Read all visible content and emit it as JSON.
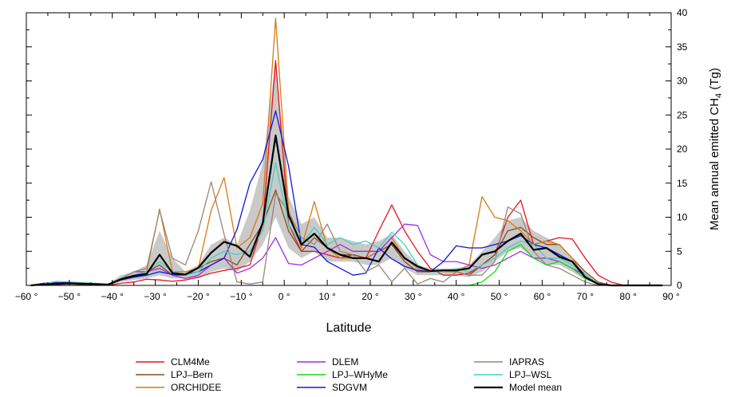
{
  "chart_data": {
    "type": "line",
    "xlabel": "Latitude",
    "ylabel_main": "Mean annual emitted CH",
    "ylabel_sub": "4",
    "ylabel_unit": " (Tg)",
    "xlim": [
      -60,
      90
    ],
    "ylim": [
      0,
      40
    ],
    "x_ticks": [
      -60,
      -50,
      -40,
      -30,
      -20,
      -10,
      0,
      10,
      20,
      30,
      40,
      50,
      60,
      70,
      80,
      90
    ],
    "x_tick_labels": [
      "−60 °",
      "−50 °",
      "−40 °",
      "−30 °",
      "−20 °",
      "−10 °",
      "0 °",
      "10 °",
      "20 °",
      "30 °",
      "40 °",
      "50 °",
      "60 °",
      "70 °",
      "80 °",
      "90 °"
    ],
    "y_ticks": [
      0,
      5,
      10,
      15,
      20,
      25,
      30,
      35,
      40
    ],
    "y_tick_labels": [
      "0",
      "5",
      "10",
      "15",
      "20",
      "25",
      "30",
      "35",
      "40"
    ],
    "legend_position": "bottom",
    "x": [
      -59,
      -56,
      -53,
      -50,
      -47,
      -44,
      -41,
      -38,
      -35,
      -32,
      -29,
      -26,
      -23,
      -20,
      -17,
      -14,
      -11,
      -8,
      -5,
      -2,
      1,
      4,
      7,
      10,
      13,
      16,
      19,
      22,
      25,
      28,
      31,
      34,
      37,
      40,
      43,
      46,
      49,
      52,
      55,
      58,
      61,
      64,
      67,
      70,
      73,
      76,
      79,
      82,
      85,
      88
    ],
    "range_band": {
      "lower": [
        0,
        0.1,
        0.1,
        0.1,
        0.1,
        0.1,
        0,
        0.5,
        0.8,
        1,
        1.5,
        1,
        1,
        1,
        2,
        2.5,
        2,
        3.5,
        6,
        10,
        5.5,
        4,
        5,
        3.5,
        3.5,
        3.5,
        3,
        3,
        4,
        2.5,
        1.5,
        1.5,
        1.5,
        1.5,
        1.2,
        2,
        3.5,
        5,
        5.5,
        4,
        3,
        3,
        2,
        0.8,
        0.2,
        0,
        0,
        0,
        0,
        0
      ],
      "upper": [
        0.1,
        0.4,
        0.5,
        0.4,
        0.4,
        0.3,
        0.2,
        1.5,
        2,
        3,
        8,
        4,
        2,
        3,
        6,
        7,
        6,
        11,
        18,
        33,
        13,
        9,
        10,
        7,
        7,
        6.5,
        6,
        6.5,
        7.5,
        5,
        3,
        2.5,
        2.5,
        2.5,
        3,
        5,
        7,
        9.5,
        10,
        8,
        7,
        6,
        4,
        2,
        0.5,
        0.1,
        0,
        0,
        0,
        0
      ]
    },
    "series": [
      {
        "name": "CLM4Me",
        "color": "#e8141c",
        "values": [
          0,
          0.1,
          0.1,
          0.2,
          0.1,
          0.1,
          0,
          0.3,
          0.5,
          0.9,
          0.8,
          0.6,
          0.8,
          1.2,
          1.8,
          2.2,
          2.5,
          3,
          9,
          33,
          9,
          5,
          5,
          4.5,
          4,
          4.5,
          4,
          8,
          11.8,
          8,
          5,
          2.5,
          1.5,
          1.5,
          1.8,
          3,
          4.5,
          10,
          12.5,
          6,
          6.5,
          7,
          6.8,
          4,
          1.5,
          0.5,
          0,
          0,
          0,
          0
        ]
      },
      {
        "name": "LPJ–Bern",
        "color": "#8c4a1c",
        "values": [
          0,
          0.1,
          0.2,
          0.3,
          0.2,
          0.2,
          0.1,
          1,
          1.5,
          2,
          3,
          1.5,
          1.5,
          2.5,
          3.5,
          4,
          3,
          6,
          9,
          14,
          8,
          5,
          7,
          5.5,
          4.5,
          4.5,
          4,
          5,
          6,
          3.5,
          2,
          2,
          2,
          2,
          1.5,
          3,
          4.5,
          8,
          8.5,
          7,
          6,
          6,
          4,
          2,
          0.5,
          0,
          0,
          0,
          0,
          0
        ]
      },
      {
        "name": "ORCHIDEE",
        "color": "#d77a12",
        "values": [
          0,
          0.1,
          0.2,
          0.3,
          0.3,
          0.2,
          0.1,
          1,
          1.5,
          2,
          11.2,
          2,
          2,
          2.5,
          11,
          15.8,
          5.5,
          7,
          12,
          39.2,
          11,
          5.5,
          12.3,
          5.5,
          4,
          4,
          4,
          5,
          7,
          4,
          2.5,
          2,
          2,
          2,
          3,
          13,
          10,
          9.5,
          8,
          6,
          6.5,
          6,
          4,
          1,
          0.3,
          0,
          0,
          0,
          0,
          0
        ]
      },
      {
        "name": "DLEM",
        "color": "#a12de2",
        "values": [
          0,
          0.1,
          0.2,
          0.2,
          0.2,
          0.2,
          0.1,
          1,
          2,
          2,
          2.5,
          1.5,
          1,
          1.5,
          3,
          4,
          1.8,
          2.5,
          4,
          7,
          3.2,
          3,
          4,
          5,
          6,
          5,
          5,
          5,
          7,
          9,
          8.8,
          4.5,
          3.5,
          3.5,
          3,
          2.5,
          3,
          4,
          5,
          4,
          4,
          3.5,
          2.5,
          1.5,
          0.2,
          0,
          0,
          0,
          0,
          0
        ]
      },
      {
        "name": "LPJ–WHyMe",
        "color": "#1ad81a",
        "values": [
          null,
          null,
          null,
          null,
          null,
          null,
          null,
          null,
          null,
          null,
          null,
          null,
          null,
          null,
          null,
          null,
          null,
          null,
          null,
          null,
          null,
          null,
          null,
          null,
          null,
          null,
          null,
          null,
          null,
          null,
          null,
          null,
          null,
          0,
          0,
          0.5,
          2,
          5,
          6,
          4,
          3,
          3.5,
          2.5,
          1,
          0.2,
          0,
          null,
          null,
          null,
          null
        ]
      },
      {
        "name": "SDGVM",
        "color": "#1018d6",
        "values": [
          0,
          0.3,
          0.4,
          0.4,
          0.3,
          0.2,
          0.1,
          0.8,
          1.2,
          1.5,
          2,
          1.6,
          1.6,
          2,
          3,
          4,
          8.2,
          15,
          18.5,
          25.6,
          17.5,
          6,
          5.6,
          3.5,
          2.5,
          1.5,
          1.8,
          5.5,
          3.9,
          2.8,
          2.2,
          2,
          3.5,
          5.8,
          5.5,
          5.5,
          6,
          6.5,
          7.3,
          6,
          5.5,
          4.5,
          3.5,
          1.5,
          0.2,
          0,
          0,
          0,
          0,
          0
        ]
      },
      {
        "name": "IAPRAS",
        "color": "#9a8676",
        "values": [
          0,
          0.1,
          0.2,
          0.2,
          0.2,
          0.2,
          0.1,
          1,
          2,
          2.5,
          11,
          4,
          3,
          8,
          15.2,
          7.5,
          0.5,
          0.2,
          0.5,
          13.5,
          10.8,
          7,
          6,
          9,
          5,
          4.5,
          2,
          3,
          0.5,
          2.5,
          0.2,
          1,
          0.5,
          2,
          1.5,
          1.5,
          3.5,
          11.5,
          10.5,
          5,
          3,
          2.5,
          1.5,
          0.5,
          0,
          0,
          0,
          0,
          0,
          0
        ]
      },
      {
        "name": "LPJ–WSL",
        "color": "#3fd2be",
        "values": [
          0,
          0.2,
          0.6,
          0.5,
          0.4,
          0.3,
          0.2,
          1,
          1.5,
          2,
          3.5,
          2,
          1.5,
          2,
          4,
          5,
          4.5,
          5,
          8,
          18,
          9,
          6,
          8.5,
          6,
          7,
          6,
          6.5,
          5.5,
          7.8,
          6,
          3,
          2,
          2,
          2.5,
          2,
          3,
          4,
          5.5,
          6.5,
          6,
          4,
          4,
          3,
          1.5,
          0.3,
          0,
          0,
          0,
          0,
          0
        ]
      },
      {
        "name": "Model mean",
        "color": "#000000",
        "values": [
          0,
          0.15,
          0.25,
          0.3,
          0.25,
          0.2,
          0.1,
          0.9,
          1.4,
          1.7,
          4.5,
          1.8,
          1.6,
          2.6,
          4.8,
          6.4,
          5.8,
          4.2,
          9.2,
          22,
          10.3,
          6,
          7.6,
          5.5,
          4.5,
          4,
          4,
          3.5,
          6.3,
          4,
          2.8,
          2.1,
          2.2,
          2.2,
          2.5,
          4.5,
          5,
          6.5,
          7.6,
          5.2,
          5.5,
          4.2,
          3.5,
          1.2,
          0.2,
          0,
          0,
          0,
          0,
          0
        ]
      }
    ]
  }
}
